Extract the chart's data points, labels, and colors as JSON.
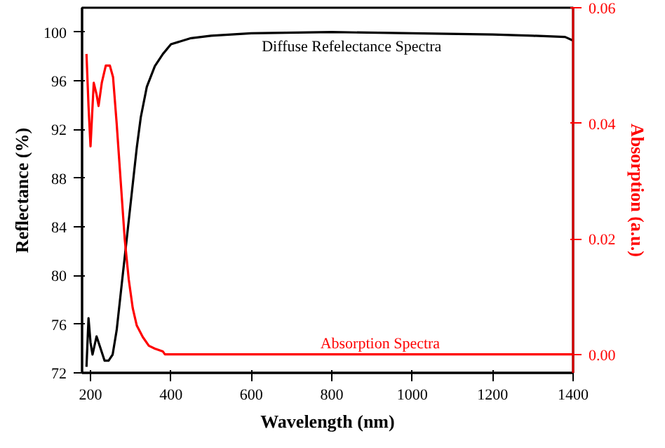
{
  "chart_data": {
    "type": "line",
    "xlabel": "Wavelength (nm)",
    "ylabel": "Reflectance (%)",
    "y2label": "Absorption (a.u.)",
    "xlim": [
      179,
      1400
    ],
    "xticks": [
      200,
      400,
      600,
      800,
      1000,
      1200,
      1400
    ],
    "ylim": [
      72,
      102
    ],
    "yticks": [
      72,
      76,
      80,
      84,
      88,
      92,
      96,
      100
    ],
    "y2lim": [
      -0.0032,
      0.06
    ],
    "y2ticks": [
      {
        "value": 0,
        "label": "0.00"
      },
      {
        "value": 0.02,
        "label": "0.02"
      },
      {
        "value": 0.04,
        "label": "0.04"
      },
      {
        "value": 0.06,
        "label": "0.06"
      }
    ],
    "grid": false,
    "series": [
      {
        "color": "#000000",
        "x": [
          190,
          195,
          200,
          205,
          215,
          225,
          235,
          245,
          255,
          265,
          275,
          285,
          295,
          305,
          315,
          325,
          340,
          360,
          380,
          400,
          450,
          500,
          600,
          800,
          1000,
          1200,
          1300,
          1380,
          1400
        ],
        "values": [
          72.5,
          76.5,
          74.5,
          73.5,
          75.0,
          74.0,
          73.0,
          73.0,
          73.5,
          75.5,
          78.5,
          81.5,
          84.5,
          87.5,
          90.5,
          93.0,
          95.5,
          97.2,
          98.2,
          99.0,
          99.5,
          99.7,
          99.9,
          100.0,
          99.9,
          99.8,
          99.7,
          99.6,
          99.3
        ]
      },
      {
        "color": "#ff0000",
        "axis": "y2",
        "x": [
          190,
          195,
          200,
          208,
          215,
          220,
          228,
          238,
          248,
          256,
          265,
          275,
          285,
          295,
          305,
          315,
          330,
          345,
          360,
          380,
          385,
          1400
        ],
        "values": [
          0.052,
          0.043,
          0.036,
          0.047,
          0.045,
          0.043,
          0.047,
          0.05,
          0.05,
          0.048,
          0.04,
          0.03,
          0.02,
          0.013,
          0.008,
          0.005,
          0.003,
          0.0015,
          0.001,
          0.0005,
          0,
          0
        ]
      }
    ],
    "annotations": [
      "Diffuse Refelectance Spectra",
      "Absorption Spectra"
    ]
  }
}
